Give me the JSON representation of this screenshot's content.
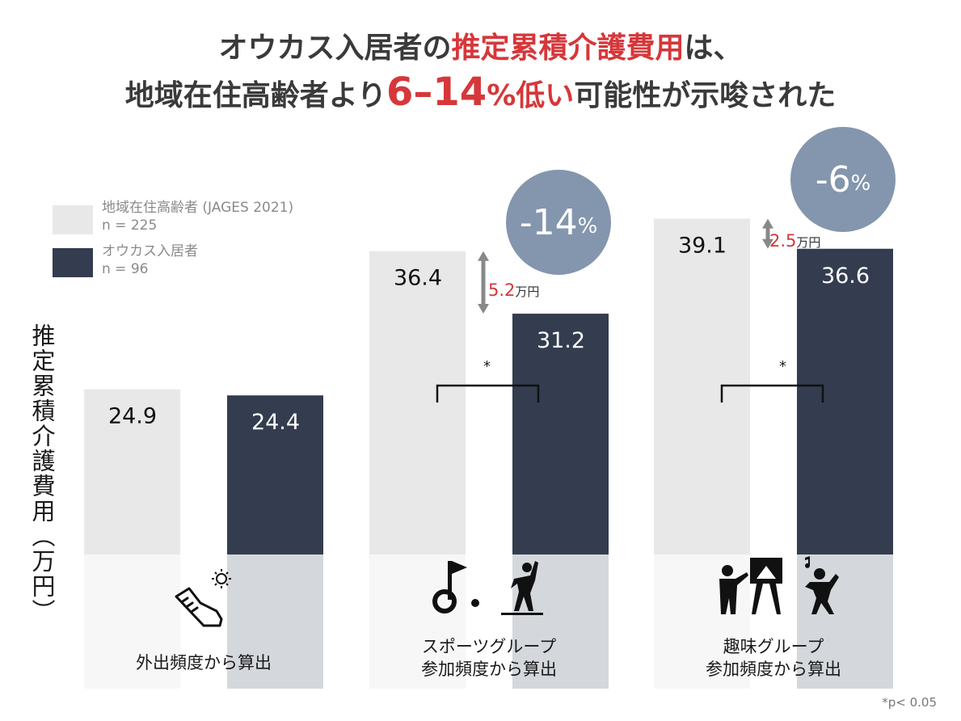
{
  "title": {
    "line1_a": "オウカス入居者の",
    "line1_b": "推定累積介護費用",
    "line1_c": "は、",
    "line2_a": "地域在住高齢者より",
    "line2_b": "6–14",
    "line2_c": "%低い",
    "line2_d": "可能性が示唆された"
  },
  "legend": [
    {
      "name": "地域在住高齢者 (JAGES 2021)",
      "n": "n = 225",
      "color": "#e8e8e8"
    },
    {
      "name": "オウカス入居者",
      "n": "n = 96",
      "color": "#333d4f"
    }
  ],
  "y_axis_label": "推定累積介護費用（万円）",
  "footnote": "*p< 0.05",
  "chart_data": {
    "type": "bar",
    "categories": [
      "外出頻度から算出",
      "スポーツグループ\n参加頻度から算出",
      "趣味グループ\n参加頻度から算出"
    ],
    "category_lines": [
      [
        "外出頻度から算出"
      ],
      [
        "スポーツグループ",
        "参加頻度から算出"
      ],
      [
        "趣味グループ",
        "参加頻度から算出"
      ]
    ],
    "series": [
      {
        "name": "地域在住高齢者 (JAGES 2021)",
        "values": [
          24.9,
          36.4,
          39.1
        ],
        "labels": [
          "24.9",
          "36.4",
          "39.1"
        ]
      },
      {
        "name": "オウカス入居者",
        "values": [
          24.4,
          31.2,
          36.6
        ],
        "labels": [
          "24.4",
          "31.2",
          "36.6"
        ]
      }
    ],
    "differences": [
      null,
      {
        "value": "5.2",
        "unit": "万円"
      },
      {
        "value": "2.5",
        "unit": "万円"
      }
    ],
    "reduction_badges": [
      null,
      {
        "value": "-14",
        "unit": "%"
      },
      {
        "value": "-6",
        "unit": "%"
      }
    ],
    "significance": [
      null,
      "*",
      "*"
    ],
    "ylabel": "推定累積介護費用（万円）",
    "colors": {
      "community": "#e8e8e8",
      "community_lower": "#f7f7f7",
      "residents": "#333d4f",
      "residents_lower": "#d4d8dc",
      "accent_red": "#d6373a",
      "badge": "#8496ad"
    }
  }
}
